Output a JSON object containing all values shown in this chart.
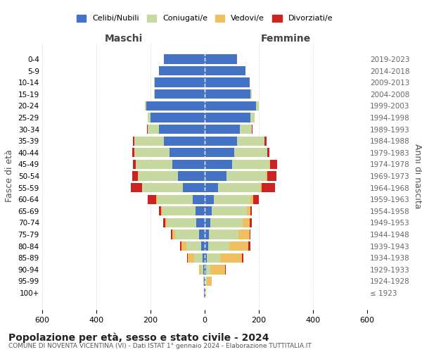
{
  "age_groups": [
    "100+",
    "95-99",
    "90-94",
    "85-89",
    "80-84",
    "75-79",
    "70-74",
    "65-69",
    "60-64",
    "55-59",
    "50-54",
    "45-49",
    "40-44",
    "35-39",
    "30-34",
    "25-29",
    "20-24",
    "15-19",
    "10-14",
    "5-9",
    "0-4"
  ],
  "birth_years": [
    "≤ 1923",
    "1924-1928",
    "1929-1933",
    "1934-1938",
    "1939-1943",
    "1944-1948",
    "1949-1953",
    "1954-1958",
    "1959-1963",
    "1964-1968",
    "1969-1973",
    "1974-1978",
    "1979-1983",
    "1984-1988",
    "1989-1993",
    "1994-1998",
    "1999-2003",
    "2004-2008",
    "2009-2013",
    "2014-2018",
    "2019-2023"
  ],
  "colors": {
    "celibi": "#4472c4",
    "coniugati": "#c5d9a0",
    "vedovi": "#f0c060",
    "divorziati": "#cc2222"
  },
  "maschi": {
    "celibi": [
      2,
      2,
      4,
      8,
      12,
      20,
      30,
      35,
      45,
      80,
      100,
      120,
      130,
      150,
      170,
      200,
      215,
      185,
      185,
      170,
      150
    ],
    "coniugati": [
      0,
      2,
      8,
      30,
      55,
      90,
      110,
      120,
      130,
      150,
      145,
      135,
      130,
      110,
      40,
      10,
      5,
      3,
      2,
      0,
      0
    ],
    "vedovi": [
      0,
      2,
      10,
      25,
      20,
      10,
      5,
      5,
      5,
      2,
      2,
      0,
      0,
      0,
      0,
      0,
      0,
      0,
      0,
      0,
      0
    ],
    "divorziati": [
      0,
      0,
      0,
      2,
      5,
      5,
      8,
      8,
      30,
      40,
      20,
      10,
      8,
      5,
      2,
      0,
      0,
      0,
      0,
      0,
      0
    ]
  },
  "femmine": {
    "celibi": [
      2,
      2,
      5,
      8,
      12,
      15,
      20,
      25,
      35,
      50,
      80,
      100,
      110,
      120,
      130,
      170,
      190,
      170,
      165,
      150,
      120
    ],
    "coniugati": [
      0,
      5,
      15,
      50,
      80,
      110,
      120,
      130,
      135,
      155,
      145,
      140,
      120,
      100,
      45,
      15,
      10,
      3,
      2,
      0,
      0
    ],
    "vedovi": [
      2,
      20,
      55,
      80,
      70,
      40,
      25,
      15,
      10,
      5,
      5,
      2,
      0,
      0,
      0,
      0,
      0,
      0,
      0,
      0,
      0
    ],
    "divorziati": [
      0,
      0,
      2,
      5,
      8,
      5,
      8,
      5,
      20,
      50,
      35,
      25,
      10,
      8,
      2,
      0,
      0,
      0,
      0,
      0,
      0
    ]
  },
  "title": "Popolazione per età, sesso e stato civile - 2024",
  "subtitle": "COMUNE DI NOVENTA VICENTINA (VI) - Dati ISTAT 1° gennaio 2024 - Elaborazione TUTTITALIA.IT",
  "ylabel_left": "Fasce di età",
  "ylabel_right": "Anni di nascita",
  "xlabel_left": "Maschi",
  "xlabel_right": "Femmine",
  "xlim": 600,
  "legend_labels": [
    "Celibi/Nubili",
    "Coniugati/e",
    "Vedovi/e",
    "Divorziati/e"
  ],
  "background_color": "#ffffff",
  "grid_color": "#cccccc"
}
